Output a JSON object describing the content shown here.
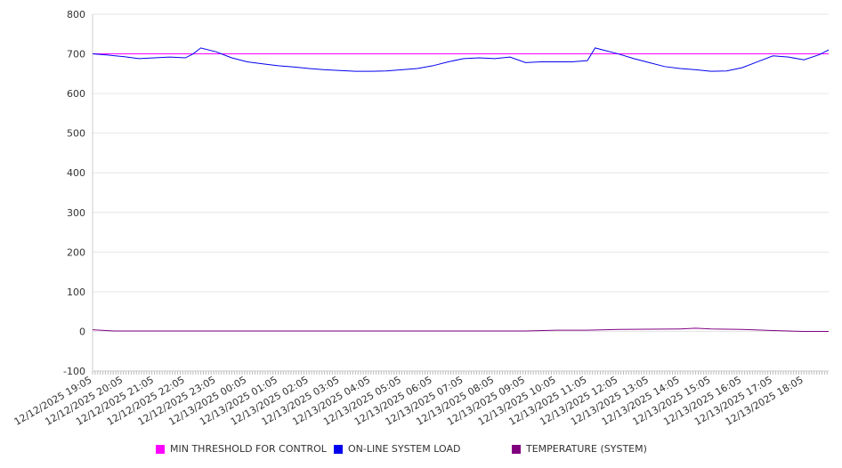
{
  "chart_data": {
    "type": "line",
    "title": "",
    "ylim": [
      -100,
      800
    ],
    "yticks": [
      800,
      700,
      600,
      500,
      400,
      300,
      200,
      100,
      0,
      -100
    ],
    "xticks": [
      "12/12/2025 19:05",
      "12/12/2025 20:05",
      "12/12/2025 21:05",
      "12/12/2025 22:05",
      "12/12/2025 23:05",
      "12/13/2025 00:05",
      "12/13/2025 01:05",
      "12/13/2025 02:05",
      "12/13/2025 03:05",
      "12/13/2025 04:05",
      "12/13/2025 05:05",
      "12/13/2025 06:05",
      "12/13/2025 07:05",
      "12/13/2025 08:05",
      "12/13/2025 09:05",
      "12/13/2025 10:05",
      "12/13/2025 11:05",
      "12/13/2025 12:05",
      "12/13/2025 13:05",
      "12/13/2025 14:05",
      "12/13/2025 15:05",
      "12/13/2025 16:05",
      "12/13/2025 17:05",
      "12/13/2025 18:05"
    ],
    "x_hours_range": [
      0,
      23.8
    ],
    "legend_position": "bottom",
    "series": [
      {
        "name": "MIN THRESHOLD FOR CONTROL",
        "color": "#ff00ff",
        "x": [
          0,
          23.8
        ],
        "values": [
          700,
          700
        ]
      },
      {
        "name": "ON-LINE SYSTEM LOAD",
        "color": "#0000ee",
        "x": [
          0,
          0.5,
          1,
          1.5,
          2,
          2.5,
          3,
          3.25,
          3.5,
          4,
          4.5,
          5,
          5.5,
          6,
          6.5,
          7,
          7.5,
          8,
          8.5,
          9,
          9.5,
          10,
          10.5,
          11,
          11.5,
          12,
          12.5,
          13,
          13.5,
          14,
          14.5,
          15,
          15.5,
          16,
          16.25,
          16.5,
          17,
          17.5,
          18,
          18.5,
          19,
          19.5,
          20,
          20.5,
          21,
          21.5,
          22,
          22.5,
          23,
          23.5,
          23.8
        ],
        "values": [
          700,
          697,
          693,
          688,
          690,
          692,
          690,
          700,
          715,
          705,
          690,
          680,
          675,
          670,
          667,
          663,
          660,
          658,
          656,
          656,
          657,
          660,
          663,
          670,
          680,
          688,
          690,
          688,
          692,
          678,
          680,
          680,
          680,
          683,
          715,
          710,
          700,
          688,
          678,
          668,
          663,
          660,
          656,
          657,
          665,
          680,
          695,
          692,
          685,
          698,
          710
        ]
      },
      {
        "name": "TEMPERATURE (SYSTEM)",
        "color": "#800080",
        "x": [
          0,
          0.7,
          2,
          6,
          10,
          14,
          15,
          16,
          17,
          19,
          19.5,
          20,
          21,
          22,
          23,
          23.8
        ],
        "values": [
          4,
          1,
          1,
          1,
          1,
          1,
          3,
          3,
          5,
          6,
          8,
          6,
          5,
          2,
          0,
          0
        ]
      }
    ]
  }
}
